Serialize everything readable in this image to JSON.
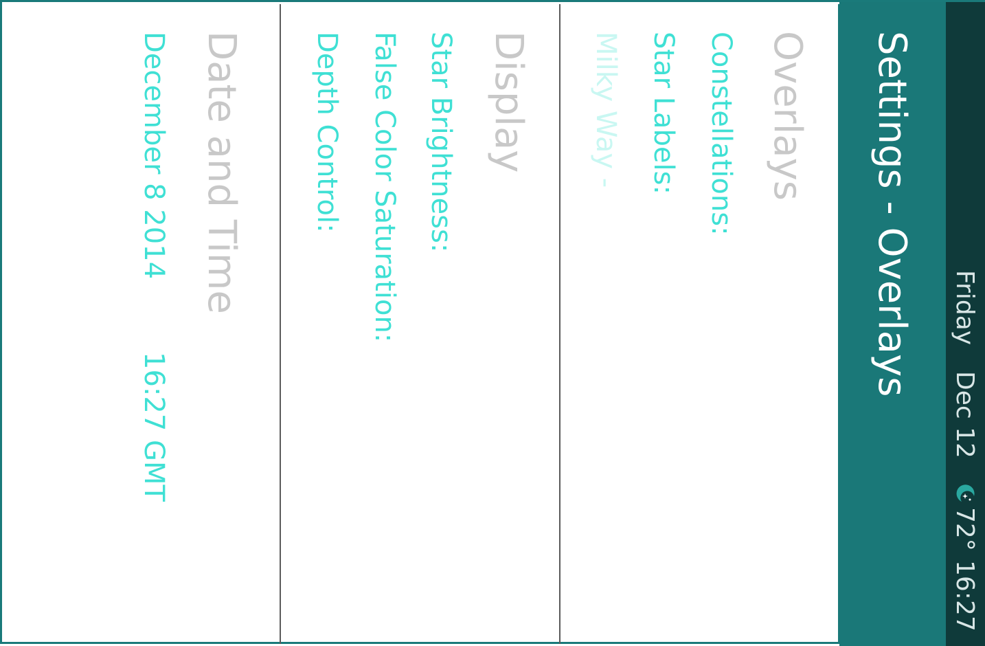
{
  "status_bar": {
    "day": "Friday",
    "date": "Dec 12",
    "weather_icon": "moon-stars-icon",
    "temperature": "72°",
    "time": "16:27"
  },
  "title_bar": {
    "title": "Settings - Overlays"
  },
  "overlays": {
    "heading": "Overlays",
    "constellations_label": "Constellations:",
    "star_labels_label": "Star Labels:",
    "milky_way_label": "Milky Way -"
  },
  "display": {
    "heading": "Display",
    "star_brightness_label": "Star Brightness:",
    "false_color_label": "False Color Saturation:",
    "depth_control_label": "Depth Control:"
  },
  "date_time": {
    "heading": "Date and Time",
    "date": "December 8 2014",
    "time": "16:27 GMT"
  },
  "colors": {
    "accent": "#3fe0d4",
    "title_bar": "#1a7878",
    "status_bar": "#0f3a3a",
    "heading": "#c8c8c8"
  }
}
